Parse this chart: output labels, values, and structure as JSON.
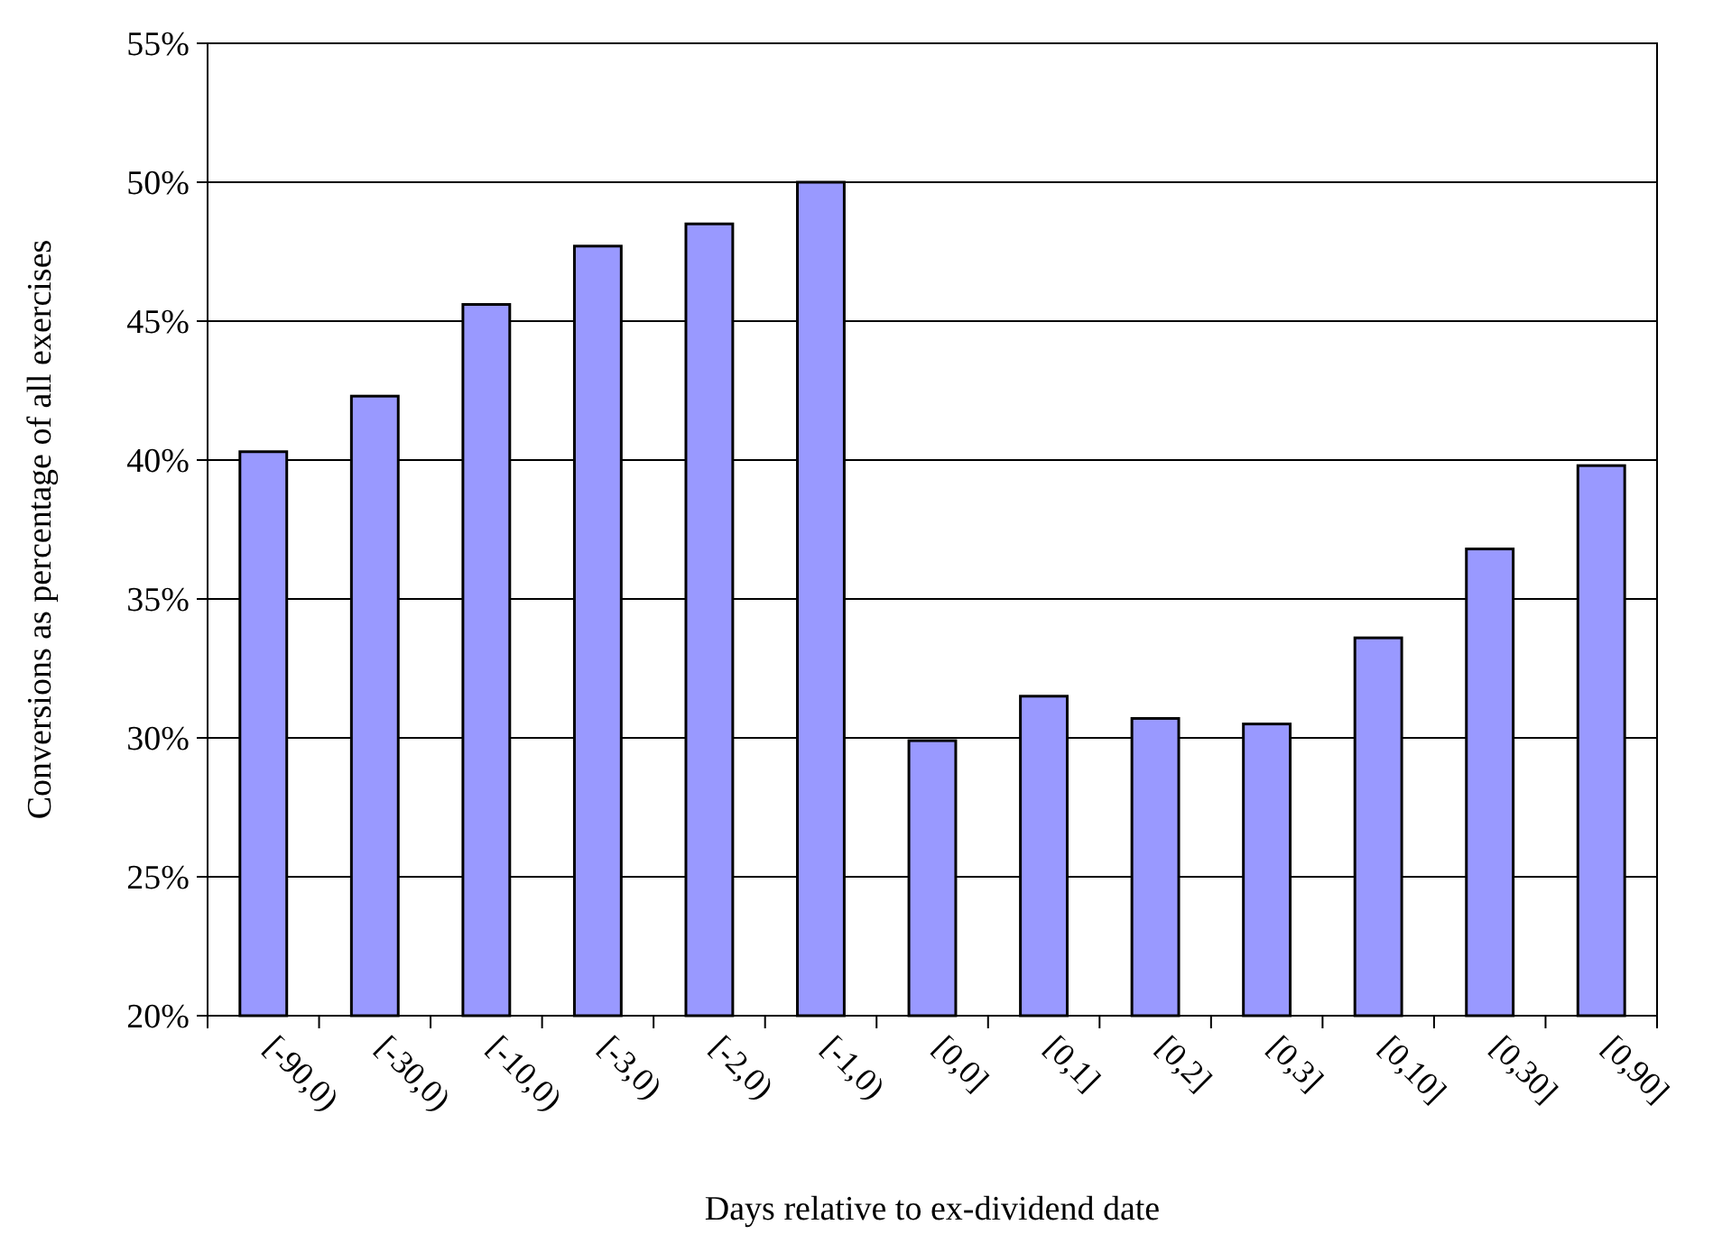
{
  "chart_data": {
    "type": "bar",
    "xlabel": "Days relative to ex-dividend date",
    "ylabel": "Conversions as percentage of all exercises",
    "categories": [
      "[-90,0)",
      "[-30,0)",
      "[-10,0)",
      "[-3,0)",
      "[-2,0)",
      "[-1,0)",
      "[0,0]",
      "[0,1]",
      "[0,2]",
      "[0,3]",
      "[0,10]",
      "[0,30]",
      "[0,90]"
    ],
    "values": [
      40.3,
      42.3,
      45.6,
      47.7,
      48.5,
      50.0,
      29.9,
      31.5,
      30.7,
      30.5,
      33.6,
      36.8,
      39.8
    ],
    "color": "#9999ff",
    "ylim": [
      20,
      55
    ],
    "yticks": [
      {
        "value": 20,
        "label": "20%"
      },
      {
        "value": 25,
        "label": "25%"
      },
      {
        "value": 30,
        "label": "30%"
      },
      {
        "value": 35,
        "label": "35%"
      },
      {
        "value": 40,
        "label": "40%"
      },
      {
        "value": 45,
        "label": "45%"
      },
      {
        "value": 50,
        "label": "50%"
      },
      {
        "value": 55,
        "label": "55%"
      }
    ],
    "grid": "y"
  }
}
